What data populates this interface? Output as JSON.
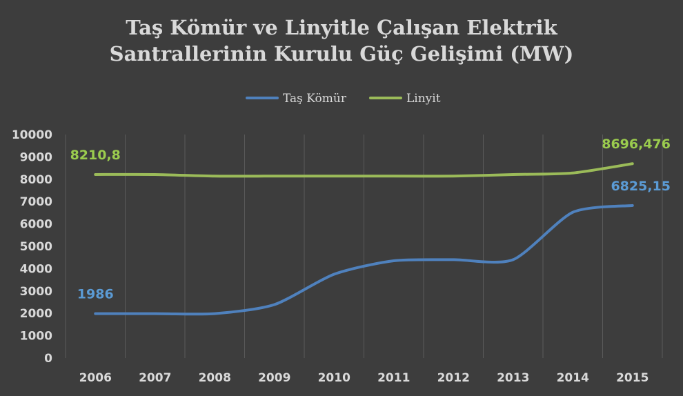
{
  "chart_data": {
    "type": "line",
    "title_lines": [
      "Taş Kömür ve Linyitle Çalışan Elektrik",
      "Santrallerinin Kurulu Güç Gelişimi (MW)"
    ],
    "xlabel": "",
    "ylabel": "",
    "categories": [
      "2006",
      "2007",
      "2008",
      "2009",
      "2010",
      "2011",
      "2012",
      "2013",
      "2014",
      "2015"
    ],
    "ylim": [
      0,
      10000
    ],
    "yticks": [
      "0",
      "1000",
      "2000",
      "3000",
      "4000",
      "5000",
      "6000",
      "7000",
      "8000",
      "9000",
      "10000"
    ],
    "grid": "vertical",
    "legend_position": "top-center",
    "series": [
      {
        "name": "Taş Kömür",
        "color": "#4f81bd",
        "values": [
          1986,
          1986,
          1986,
          2391,
          3751,
          4351,
          4401,
          4401,
          6521,
          6825.15
        ],
        "labels": [
          {
            "index": 0,
            "text": "1986"
          },
          {
            "index": 9,
            "text": "6825,15"
          }
        ]
      },
      {
        "name": "Linyit",
        "color": "#9bbb59",
        "values": [
          8210.8,
          8210.8,
          8140,
          8140,
          8140,
          8140,
          8140,
          8210,
          8280,
          8696.476
        ],
        "labels": [
          {
            "index": 0,
            "text": "8210,8"
          },
          {
            "index": 9,
            "text": "8696,476"
          }
        ]
      }
    ]
  }
}
